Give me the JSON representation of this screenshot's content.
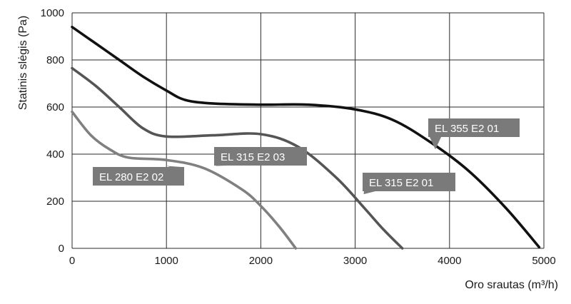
{
  "chart_data": {
    "type": "line",
    "xlabel": "Oro srautas (m³/h)",
    "ylabel": "Statinis slėgis (Pa)",
    "xlim": [
      0,
      5000
    ],
    "ylim": [
      0,
      1000
    ],
    "x_ticks": [
      0,
      1000,
      2000,
      3000,
      4000,
      5000
    ],
    "y_ticks": [
      0,
      200,
      400,
      600,
      800,
      1000
    ],
    "grid": true,
    "series": [
      {
        "name": "EL 355  E2 01",
        "color": "#111111",
        "x": [
          0,
          250,
          500,
          750,
          1000,
          1200,
          1500,
          2000,
          2500,
          3000,
          3400,
          3800,
          4200,
          4600,
          4950
        ],
        "y": [
          940,
          870,
          800,
          730,
          670,
          630,
          615,
          610,
          610,
          590,
          545,
          450,
          330,
          170,
          5
        ]
      },
      {
        "name": "EL 315  E2 01",
        "color": "#555555",
        "x": [
          0,
          250,
          500,
          750,
          1000,
          1500,
          2000,
          2400,
          2800,
          3100,
          3300,
          3500
        ],
        "y": [
          765,
          690,
          600,
          510,
          475,
          480,
          485,
          430,
          300,
          170,
          80,
          0
        ]
      },
      {
        "name": "EL 315  E2 03",
        "color": "#808080",
        "x": [
          0,
          200,
          400,
          600,
          1000,
          1400,
          1800,
          2000,
          2200,
          2370
        ],
        "y": [
          580,
          480,
          420,
          385,
          375,
          340,
          250,
          180,
          90,
          0
        ]
      },
      {
        "name": "EL 280 E2 02",
        "color": "#a6a6a6",
        "x": [],
        "y": []
      }
    ],
    "annotations": [
      {
        "text": "EL 355  E2 01",
        "point": [
          3850,
          420
        ]
      },
      {
        "text": "EL 315  E2 03",
        "point": [
          1530,
          350
        ]
      },
      {
        "text": "EL 280 E2 02",
        "point": [
          1000,
          350
        ]
      },
      {
        "text": "EL 315  E2 01",
        "point": [
          3090,
          230
        ]
      }
    ]
  }
}
